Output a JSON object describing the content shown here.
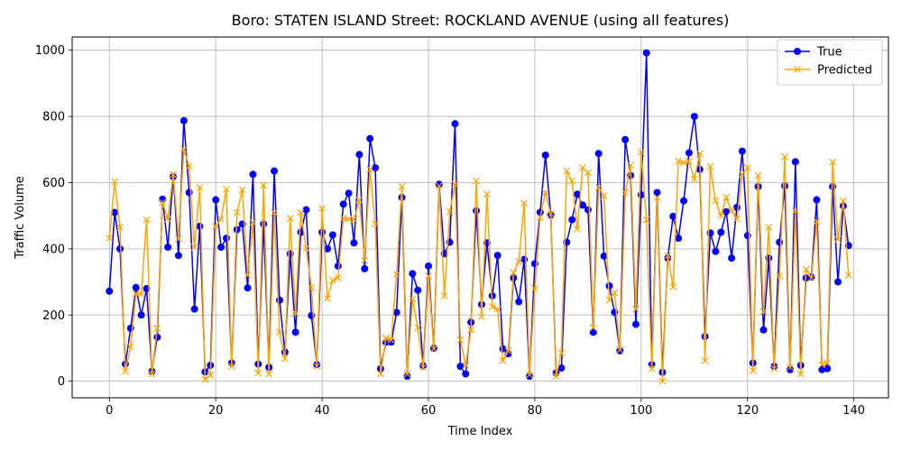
{
  "chart_data": {
    "type": "line",
    "title": "Boro: STATEN ISLAND Street: ROCKLAND AVENUE (using all features)",
    "xlabel": "Time Index",
    "ylabel": "Traffic Volume",
    "xlim": [
      -7,
      146.5
    ],
    "ylim": [
      -50,
      1040
    ],
    "xticks": [
      0,
      20,
      40,
      60,
      80,
      100,
      120,
      140
    ],
    "yticks": [
      0,
      200,
      400,
      600,
      800,
      1000
    ],
    "grid": true,
    "legend_position": "upper right",
    "series": [
      {
        "name": "True",
        "color": "#0000ff",
        "marker": "circle",
        "values": [
          272,
          510,
          400,
          52,
          160,
          283,
          200,
          280,
          30,
          133,
          550,
          405,
          618,
          380,
          787,
          570,
          218,
          468,
          28,
          48,
          548,
          405,
          432,
          55,
          458,
          475,
          282,
          625,
          52,
          475,
          42,
          635,
          245,
          88,
          385,
          148,
          450,
          518,
          198,
          50,
          450,
          400,
          442,
          348,
          535,
          568,
          418,
          685,
          340,
          733,
          645,
          38,
          118,
          118,
          208,
          555,
          15,
          325,
          275,
          47,
          348,
          100,
          595,
          385,
          420,
          778,
          45,
          22,
          178,
          515,
          232,
          418,
          258,
          380,
          98,
          83,
          312,
          240,
          368,
          15,
          355,
          510,
          683,
          502,
          25,
          40,
          420,
          488,
          565,
          532,
          518,
          148,
          688,
          378,
          288,
          208,
          92,
          730,
          622,
          172,
          563,
          992,
          50,
          570,
          27,
          372,
          498,
          432,
          545,
          690,
          800,
          640,
          135,
          448,
          392,
          450,
          512,
          372,
          525,
          695,
          440,
          55,
          588,
          155,
          372,
          45,
          420,
          590,
          35,
          663,
          48,
          312,
          315,
          548,
          35,
          38,
          588,
          300,
          530,
          410
        ]
      },
      {
        "name": "Predicted",
        "color": "#ffa500",
        "marker": "x",
        "values": [
          432,
          603,
          465,
          30,
          105,
          265,
          262,
          488,
          22,
          160,
          540,
          490,
          625,
          430,
          700,
          650,
          405,
          585,
          5,
          18,
          468,
          490,
          580,
          45,
          510,
          578,
          320,
          480,
          25,
          592,
          22,
          510,
          148,
          68,
          492,
          205,
          510,
          402,
          282,
          45,
          522,
          250,
          305,
          312,
          492,
          490,
          488,
          548,
          365,
          640,
          475,
          22,
          130,
          125,
          322,
          588,
          22,
          248,
          162,
          42,
          318,
          98,
          590,
          258,
          512,
          595,
          125,
          48,
          155,
          605,
          195,
          565,
          225,
          218,
          62,
          92,
          328,
          362,
          538,
          20,
          280,
          495,
          570,
          505,
          15,
          85,
          635,
          605,
          460,
          645,
          630,
          162,
          585,
          560,
          245,
          268,
          95,
          570,
          652,
          218,
          692,
          488,
          38,
          555,
          0,
          380,
          285,
          665,
          660,
          665,
          610,
          688,
          62,
          648,
          545,
          500,
          555,
          515,
          490,
          625,
          645,
          32,
          622,
          210,
          465,
          38,
          318,
          678,
          42,
          515,
          22,
          338,
          312,
          482,
          50,
          55,
          662,
          428,
          545,
          320
        ]
      }
    ]
  }
}
